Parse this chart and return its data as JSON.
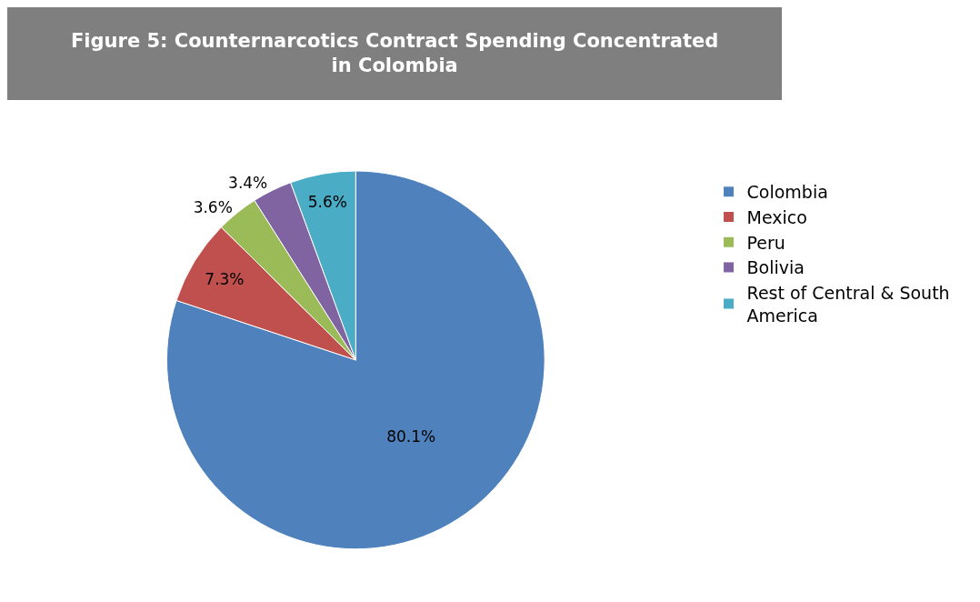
{
  "chart_data": {
    "type": "pie",
    "title": "Figure 5: Counternarcotics Contract Spending Concentrated in Colombia",
    "categories": [
      "Colombia",
      "Mexico",
      "Peru",
      "Bolivia",
      "Rest of Central & South America"
    ],
    "values": [
      80.1,
      7.3,
      3.6,
      3.4,
      5.6
    ],
    "colors": [
      "#4f81bd",
      "#c0504d",
      "#9bbb59",
      "#8064a2",
      "#4bacc6"
    ],
    "value_labels": [
      "80.1%",
      "7.3%",
      "3.6%",
      "3.4%",
      "5.6%"
    ],
    "legend": "right"
  }
}
